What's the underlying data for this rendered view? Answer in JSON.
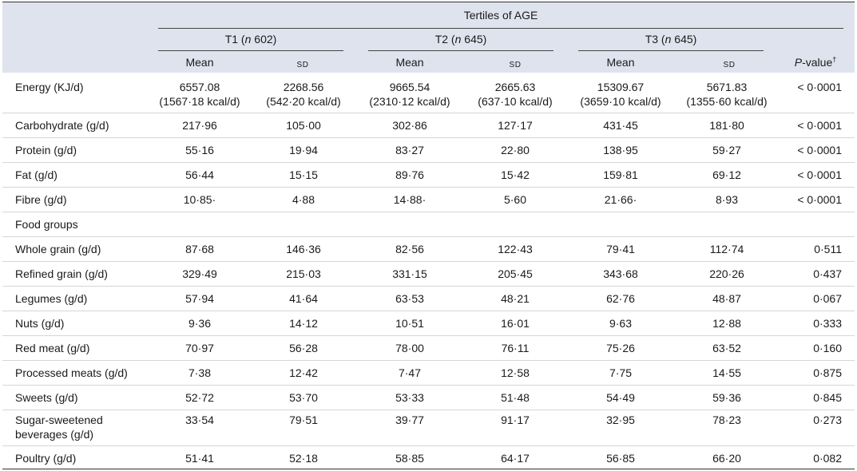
{
  "header": {
    "group_title": "Tertiles of AGE",
    "groups": [
      {
        "label": "T1",
        "n_label": "n",
        "n_value": "602"
      },
      {
        "label": "T2",
        "n_label": "n",
        "n_value": "645"
      },
      {
        "label": "T3",
        "n_label": "n",
        "n_value": "645"
      }
    ],
    "mean_label": "Mean",
    "sd_label": "SD",
    "p_label": "P",
    "p_suffix": "-value",
    "p_dagger": "†"
  },
  "energy": {
    "label": "Energy (KJ/d)",
    "t1_mean": "6557.08",
    "t1_mean_kcal": "(1567·18 kcal/d)",
    "t1_sd": "2268.56",
    "t1_sd_kcal": "(542·20 kcal/d)",
    "t2_mean": "9665.54",
    "t2_mean_kcal": "(2310·12 kcal/d)",
    "t2_sd": "2665.63",
    "t2_sd_kcal": "(637·10 kcal/d)",
    "t3_mean": "15309.67",
    "t3_mean_kcal": "(3659·10 kcal/d)",
    "t3_sd": "5671.83",
    "t3_sd_kcal": "(1355·60 kcal/d)",
    "p": "< 0·0001"
  },
  "rows": [
    {
      "label": "Carbohydrate (g/d)",
      "v": [
        "217·96",
        "105·00",
        "302·86",
        "127·17",
        "431·45",
        "181·80"
      ],
      "p": "< 0·0001"
    },
    {
      "label": "Protein (g/d)",
      "v": [
        "55·16",
        "19·94",
        "83·27",
        "22·80",
        "138·95",
        "59·27"
      ],
      "p": "< 0·0001"
    },
    {
      "label": "Fat (g/d)",
      "v": [
        "56·44",
        "15·15",
        "89·76",
        "15·42",
        "159·81",
        "69·12"
      ],
      "p": "< 0·0001"
    },
    {
      "label": "Fibre (g/d)",
      "v": [
        "10·85·",
        "4·88",
        "14·88·",
        "5·60",
        "21·66·",
        "8·93"
      ],
      "p": "< 0·0001"
    },
    {
      "label": "Food groups",
      "v": [
        "",
        "",
        "",
        "",
        "",
        ""
      ],
      "p": ""
    },
    {
      "label": "Whole grain (g/d)",
      "v": [
        "87·68",
        "146·36",
        "82·56",
        "122·43",
        "79·41",
        "112·74"
      ],
      "p": "0·511"
    },
    {
      "label": "Refined grain (g/d)",
      "v": [
        "329·49",
        "215·03",
        "331·15",
        "205·45",
        "343·68",
        "220·26"
      ],
      "p": "0·437"
    },
    {
      "label": "Legumes (g/d)",
      "v": [
        "57·94",
        "41·64",
        "63·53",
        "48·21",
        "62·76",
        "48·87"
      ],
      "p": "0·067"
    },
    {
      "label": "Nuts (g/d)",
      "v": [
        "9·36",
        "14·12",
        "10·51",
        "16·01",
        "9·63",
        "12·88"
      ],
      "p": "0·333"
    },
    {
      "label": "Red meat (g/d)",
      "v": [
        "70·97",
        "56·28",
        "78·00",
        "76·11",
        "75·26",
        "63·52"
      ],
      "p": "0·160"
    },
    {
      "label": "Processed meats (g/d)",
      "v": [
        "7·38",
        "12·42",
        "7·47",
        "12·58",
        "7·75",
        "14·55"
      ],
      "p": "0·875"
    },
    {
      "label": "Sweets (g/d)",
      "v": [
        "52·72",
        "53·70",
        "53·33",
        "51·48",
        "54·49",
        "59·36"
      ],
      "p": "0·845"
    }
  ],
  "ssb": {
    "label_line1": "Sugar-sweetened",
    "label_line2": "beverages (g/d)",
    "v": [
      "33·54",
      "79·51",
      "39·77",
      "91·17",
      "32·95",
      "78·23"
    ],
    "p": "0·273"
  },
  "poultry": {
    "label": "Poultry (g/d)",
    "v": [
      "51·41",
      "52·18",
      "58·85",
      "64·17",
      "56·85",
      "66·20"
    ],
    "p": "0·082"
  }
}
